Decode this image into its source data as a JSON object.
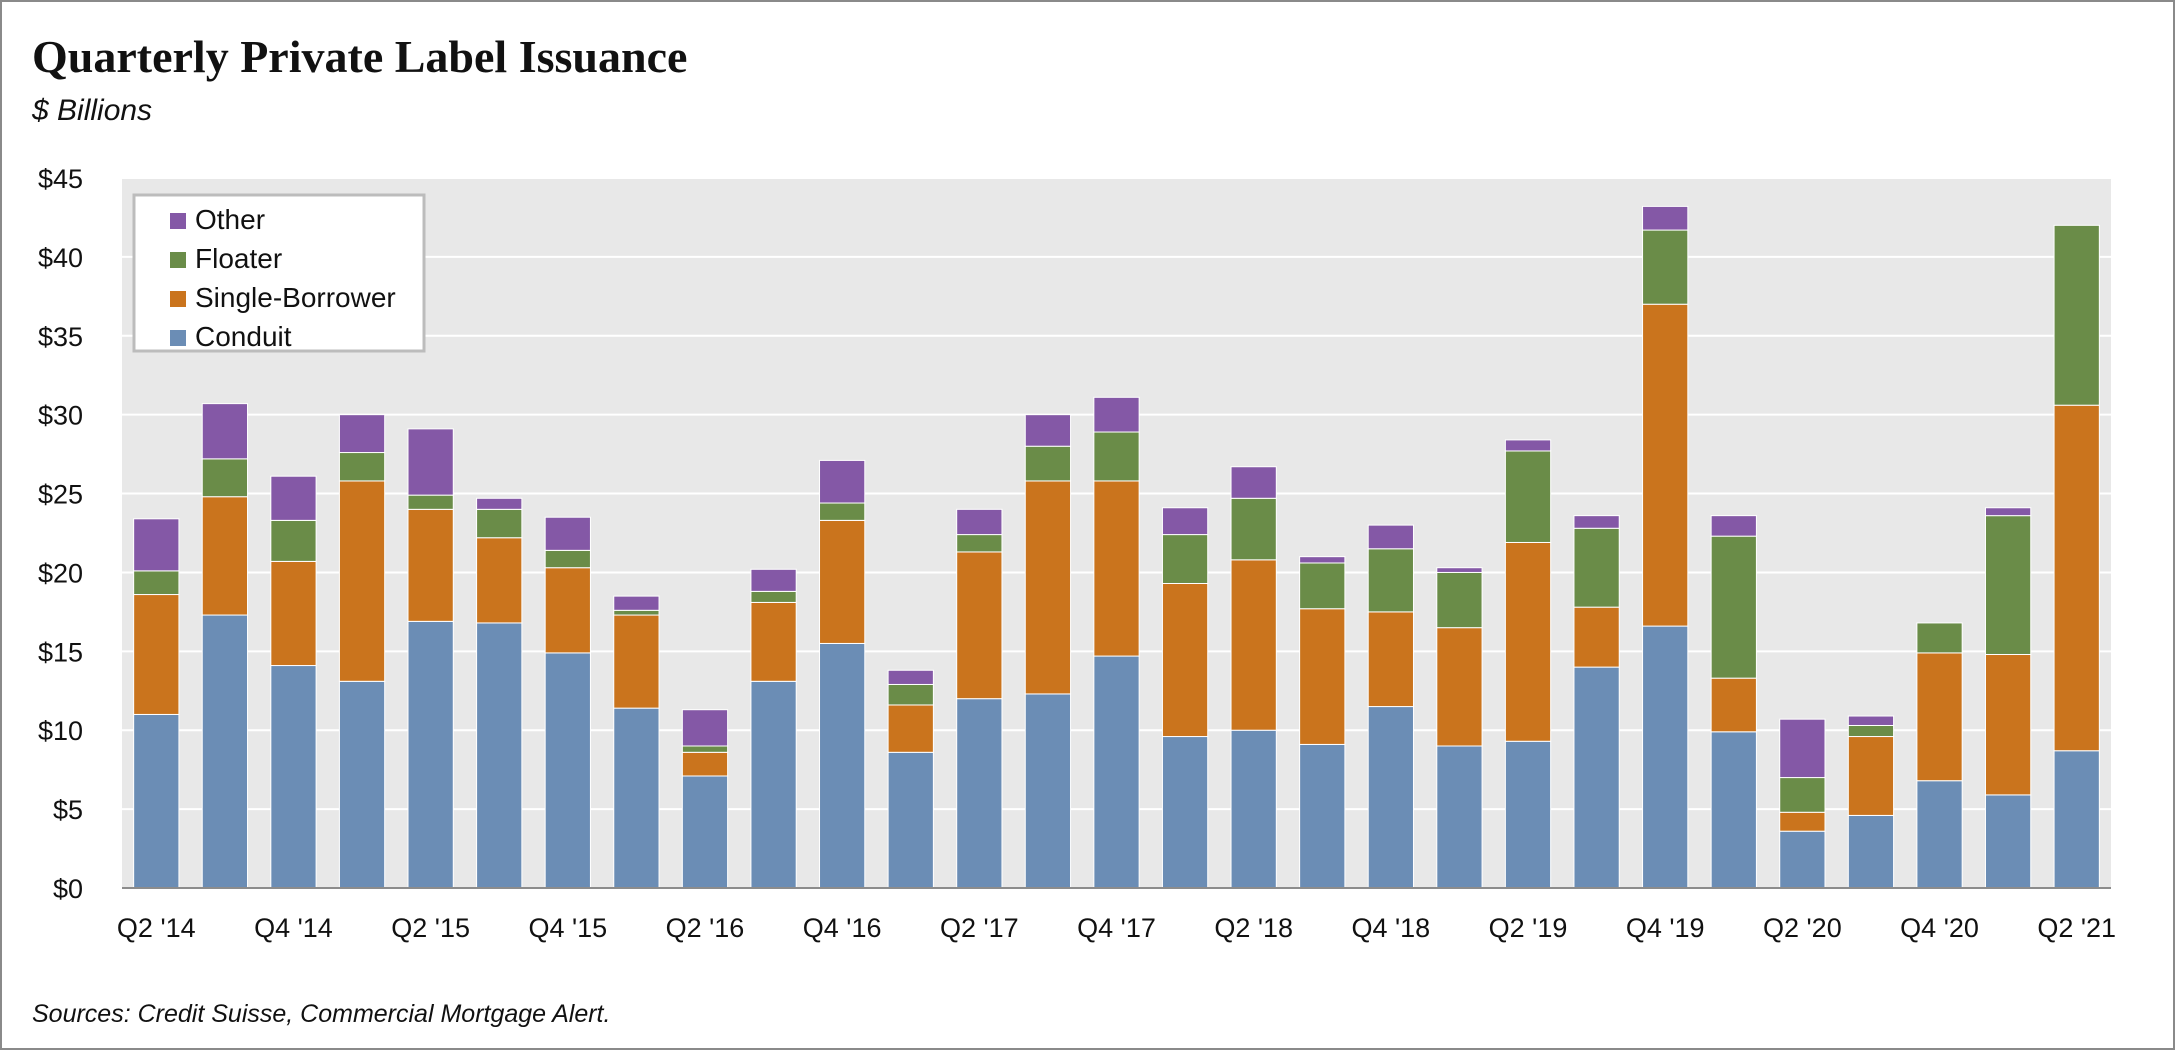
{
  "title": "Quarterly Private Label Issuance",
  "subtitle": "$ Billions",
  "source": "Sources: Credit Suisse, Commercial Mortgage Alert.",
  "chart_data": {
    "type": "bar",
    "stacked": true,
    "title": "Quarterly Private Label Issuance",
    "subtitle": "$ Billions",
    "xlabel": "",
    "ylabel": "",
    "ylim": [
      0,
      45
    ],
    "y_ticks": [
      "$0",
      "$5",
      "$10",
      "$15",
      "$20",
      "$25",
      "$30",
      "$35",
      "$40",
      "$45"
    ],
    "y_tick_values": [
      0,
      5,
      10,
      15,
      20,
      25,
      30,
      35,
      40,
      45
    ],
    "grid": true,
    "legend_position": "top-left",
    "categories": [
      "Q2 '14",
      "Q3 '14",
      "Q4 '14",
      "Q1 '15",
      "Q2 '15",
      "Q3 '15",
      "Q4 '15",
      "Q1 '16",
      "Q2 '16",
      "Q3 '16",
      "Q4 '16",
      "Q1 '17",
      "Q2 '17",
      "Q3 '17",
      "Q4 '17",
      "Q1 '18",
      "Q2 '18",
      "Q3 '18",
      "Q4 '18",
      "Q1 '19",
      "Q2 '19",
      "Q3 '19",
      "Q4 '19",
      "Q1 '20",
      "Q2 '20",
      "Q3 '20",
      "Q4 '20",
      "Q1 '21",
      "Q2 '21"
    ],
    "x_tick_labels": [
      "Q2 '14",
      "",
      "Q4 '14",
      "",
      "Q2 '15",
      "",
      "Q4 '15",
      "",
      "Q2 '16",
      "",
      "Q4 '16",
      "",
      "Q2 '17",
      "",
      "Q4 '17",
      "",
      "Q2 '18",
      "",
      "Q4 '18",
      "",
      "Q2 '19",
      "",
      "Q4 '19",
      "",
      "Q2 '20",
      "",
      "Q4 '20",
      "",
      "Q2 '21"
    ],
    "series": [
      {
        "name": "Conduit",
        "color": "#6b8db5",
        "values": [
          11.0,
          17.3,
          14.1,
          13.1,
          16.9,
          16.8,
          14.9,
          11.4,
          7.1,
          13.1,
          15.5,
          8.6,
          12.0,
          12.3,
          14.7,
          9.6,
          10.0,
          9.1,
          11.5,
          9.0,
          9.3,
          14.0,
          16.6,
          9.9,
          3.6,
          4.6,
          6.8,
          5.9,
          8.7
        ]
      },
      {
        "name": "Single-Borrower",
        "color": "#ca741d",
        "values": [
          7.6,
          7.5,
          6.6,
          12.7,
          7.1,
          5.4,
          5.4,
          5.9,
          1.5,
          5.0,
          7.8,
          3.0,
          9.3,
          13.5,
          11.1,
          9.7,
          10.8,
          8.6,
          6.0,
          7.5,
          12.6,
          3.8,
          20.4,
          3.4,
          1.2,
          5.0,
          8.1,
          8.9,
          21.9
        ]
      },
      {
        "name": "Floater",
        "color": "#6a8c48",
        "values": [
          1.5,
          2.4,
          2.6,
          1.8,
          0.9,
          1.8,
          1.1,
          0.3,
          0.4,
          0.7,
          1.1,
          1.3,
          1.1,
          2.2,
          3.1,
          3.1,
          3.9,
          2.9,
          4.0,
          3.5,
          5.8,
          5.0,
          4.7,
          9.0,
          2.2,
          0.7,
          1.9,
          8.8,
          11.4
        ]
      },
      {
        "name": "Other",
        "color": "#8458a6",
        "values": [
          3.3,
          3.5,
          2.8,
          2.4,
          4.2,
          0.7,
          2.1,
          0.9,
          2.3,
          1.4,
          2.7,
          0.9,
          1.6,
          2.0,
          2.2,
          1.7,
          2.0,
          0.4,
          1.5,
          0.3,
          0.7,
          0.8,
          1.5,
          1.3,
          3.7,
          0.6,
          0.0,
          0.5,
          0.0
        ]
      }
    ],
    "legend_order": [
      "Other",
      "Floater",
      "Single-Borrower",
      "Conduit"
    ]
  }
}
